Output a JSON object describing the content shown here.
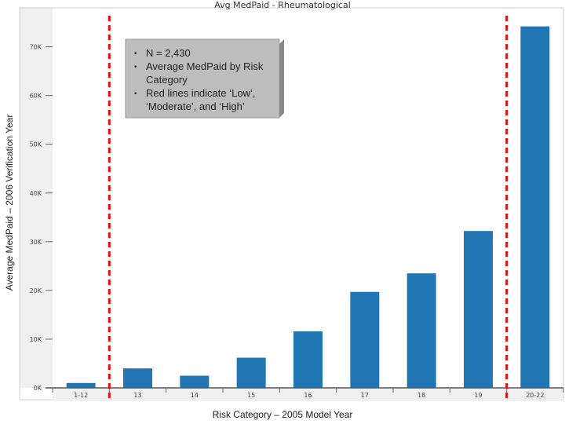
{
  "chart_data": {
    "type": "bar",
    "title": "Avg MedPaid - Rheumatological",
    "xlabel": "Risk Category – 2005 Model Year",
    "ylabel": "Average MedPaid – 2006 Verification Year",
    "categories": [
      "1-12",
      "13",
      "14",
      "15",
      "16",
      "17",
      "18",
      "19",
      "20-22"
    ],
    "values": [
      1000,
      4000,
      2500,
      6200,
      11600,
      19700,
      23500,
      32200,
      74200
    ],
    "yticks": [
      0,
      10000,
      20000,
      30000,
      40000,
      50000,
      60000,
      70000
    ],
    "ytick_labels": [
      "0K",
      "10K",
      "20K",
      "30K",
      "40K",
      "50K",
      "60K",
      "70K"
    ],
    "ylim": [
      0,
      78000
    ],
    "bar_color": "#2077b4",
    "threshold_color": "#dd1111",
    "threshold_lines_after_category": [
      "1-12",
      "19"
    ],
    "annotation": [
      "N = 2,430",
      "Average MedPaid by Risk Category",
      "Red lines indicate ‘Low’, ‘Moderate’, and ‘High’"
    ],
    "grid": false,
    "legend": "none"
  }
}
